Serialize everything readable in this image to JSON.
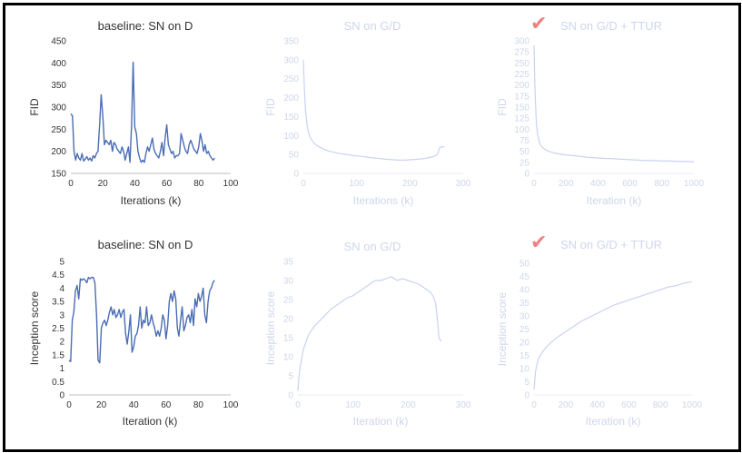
{
  "colors": {
    "bold_line": "#4a6db4",
    "faded_line": "#c9d3f1",
    "bold_text": "#333333",
    "faded_text": "#cfd6ea",
    "bold_axis": "#bfbfbf",
    "faded_axis": "#e8ebf4",
    "check": "#f08080",
    "border": "#000000"
  },
  "chart_data": [
    {
      "type": "line",
      "title": "baseline: SN on D",
      "xlabel": "Iterations (k)",
      "ylabel": "FID",
      "xlim": [
        0,
        100
      ],
      "ylim": [
        150,
        450
      ],
      "xticks": [
        "0",
        "20",
        "40",
        "60",
        "80",
        "100"
      ],
      "yticks": [
        "150",
        "200",
        "250",
        "300",
        "350",
        "400",
        "450"
      ],
      "style": "bold",
      "checked": false,
      "x": [
        0,
        1,
        2,
        3,
        4,
        5,
        6,
        7,
        8,
        9,
        10,
        11,
        12,
        13,
        14,
        15,
        16,
        17,
        18,
        19,
        20,
        21,
        22,
        23,
        24,
        25,
        26,
        27,
        28,
        29,
        30,
        31,
        32,
        33,
        34,
        35,
        36,
        37,
        38,
        39,
        40,
        41,
        42,
        43,
        44,
        45,
        46,
        47,
        48,
        49,
        50,
        51,
        52,
        53,
        54,
        55,
        56,
        57,
        58,
        59,
        60,
        61,
        62,
        63,
        64,
        65,
        66,
        67,
        68,
        69,
        70,
        71,
        72,
        73,
        74,
        75,
        76,
        77,
        78,
        79,
        80,
        81,
        82,
        83,
        84,
        85,
        86,
        87,
        88,
        89,
        90
      ],
      "y": [
        285,
        280,
        200,
        180,
        195,
        185,
        180,
        195,
        178,
        182,
        188,
        180,
        185,
        178,
        190,
        185,
        195,
        200,
        260,
        328,
        280,
        215,
        225,
        220,
        215,
        225,
        200,
        220,
        215,
        205,
        200,
        195,
        210,
        200,
        180,
        195,
        210,
        175,
        260,
        402,
        255,
        240,
        200,
        185,
        175,
        180,
        175,
        195,
        210,
        200,
        215,
        230,
        205,
        195,
        190,
        185,
        200,
        220,
        190,
        230,
        260,
        215,
        205,
        195,
        200,
        185,
        190,
        190,
        195,
        240,
        225,
        210,
        200,
        195,
        215,
        225,
        215,
        205,
        200,
        195,
        210,
        240,
        225,
        200,
        215,
        195,
        200,
        190,
        185,
        180,
        185
      ],
      "legend": "none",
      "grid": false
    },
    {
      "type": "line",
      "title": "SN on G/D",
      "xlabel": "Iterations (k)",
      "ylabel": "FID",
      "xlim": [
        0,
        300
      ],
      "ylim": [
        0,
        350
      ],
      "xticks": [
        "0",
        "100",
        "200",
        "300"
      ],
      "yticks": [
        "0",
        "50",
        "100",
        "150",
        "200",
        "250",
        "300",
        "350"
      ],
      "style": "faded",
      "checked": false,
      "x": [
        0,
        2,
        4,
        6,
        8,
        10,
        13,
        16,
        20,
        25,
        30,
        40,
        50,
        60,
        70,
        80,
        90,
        100,
        110,
        120,
        130,
        140,
        150,
        160,
        170,
        180,
        190,
        200,
        210,
        220,
        230,
        240,
        245,
        250,
        253,
        256,
        260,
        265
      ],
      "y": [
        300,
        220,
        170,
        140,
        120,
        105,
        95,
        88,
        80,
        74,
        70,
        63,
        58,
        55,
        52,
        50,
        48,
        46,
        45,
        43,
        41,
        40,
        38,
        37,
        36,
        35,
        35,
        36,
        37,
        38,
        40,
        43,
        45,
        48,
        55,
        68,
        70,
        70
      ],
      "legend": "none",
      "grid": false
    },
    {
      "type": "line",
      "title": "SN on G/D + TTUR",
      "xlabel": "Iteration (k)",
      "ylabel": "FID",
      "xlim": [
        0,
        1000
      ],
      "ylim": [
        0,
        300
      ],
      "xticks": [
        "0",
        "200",
        "400",
        "600",
        "800",
        "1000"
      ],
      "yticks": [
        "0",
        "25",
        "50",
        "75",
        "100",
        "125",
        "150",
        "175",
        "200",
        "225",
        "250",
        "275",
        "300"
      ],
      "style": "faded",
      "checked": true,
      "check_mark": "✔",
      "x": [
        0,
        5,
        10,
        15,
        20,
        30,
        40,
        50,
        60,
        80,
        100,
        130,
        160,
        200,
        250,
        300,
        350,
        400,
        450,
        500,
        550,
        600,
        650,
        700,
        750,
        800,
        850,
        900,
        950,
        1000
      ],
      "y": [
        290,
        200,
        150,
        115,
        95,
        75,
        65,
        60,
        56,
        52,
        49,
        46,
        44,
        42,
        40,
        38,
        36,
        35,
        34,
        33,
        32,
        31,
        30,
        29,
        29,
        28,
        28,
        27,
        27,
        26
      ],
      "legend": "none",
      "grid": false
    },
    {
      "type": "line",
      "title": "baseline: SN on D",
      "xlabel": "Iteration (k)",
      "ylabel": "Inception score",
      "xlim": [
        0,
        100
      ],
      "ylim": [
        0,
        5
      ],
      "xticks": [
        "0",
        "20",
        "40",
        "60",
        "80",
        "100"
      ],
      "yticks": [
        "0",
        "0.5",
        "1",
        "1.5",
        "2",
        "2.5",
        "3",
        "3.5",
        "4",
        "4.5",
        "5"
      ],
      "style": "bold",
      "checked": false,
      "x": [
        0,
        1,
        2,
        3,
        4,
        5,
        6,
        7,
        8,
        9,
        10,
        11,
        12,
        13,
        14,
        15,
        16,
        17,
        18,
        19,
        20,
        21,
        22,
        23,
        24,
        25,
        26,
        27,
        28,
        29,
        30,
        31,
        32,
        33,
        34,
        35,
        36,
        37,
        38,
        39,
        40,
        41,
        42,
        43,
        44,
        45,
        46,
        47,
        48,
        49,
        50,
        51,
        52,
        53,
        54,
        55,
        56,
        57,
        58,
        59,
        60,
        61,
        62,
        63,
        64,
        65,
        66,
        67,
        68,
        69,
        70,
        71,
        72,
        73,
        74,
        75,
        76,
        77,
        78,
        79,
        80,
        81,
        82,
        83,
        84,
        85,
        86,
        87,
        88,
        89,
        90
      ],
      "y": [
        1.3,
        1.25,
        2.8,
        3.1,
        3.9,
        4.1,
        3.6,
        4.35,
        4.3,
        4.35,
        4.3,
        4.2,
        4.4,
        4.35,
        4.4,
        4.4,
        4.2,
        3.0,
        1.3,
        1.2,
        2.5,
        2.7,
        2.8,
        2.6,
        2.8,
        3.1,
        3.3,
        3.0,
        3.2,
        2.9,
        3.0,
        3.2,
        2.9,
        3.1,
        3.2,
        2.3,
        1.9,
        2.4,
        3.0,
        1.6,
        1.8,
        2.2,
        2.3,
        2.6,
        3.3,
        2.5,
        2.8,
        2.7,
        3.3,
        2.6,
        2.7,
        3.0,
        2.7,
        2.5,
        2.2,
        2.4,
        2.2,
        2.5,
        3.0,
        2.8,
        2.1,
        2.6,
        3.5,
        3.8,
        3.5,
        3.9,
        3.6,
        2.5,
        2.2,
        2.8,
        3.3,
        2.4,
        2.6,
        2.9,
        3.0,
        2.7,
        3.2,
        2.6,
        3.6,
        3.3,
        3.8,
        3.5,
        3.7,
        4.0,
        3.0,
        2.7,
        3.5,
        3.9,
        4.0,
        4.2,
        4.3
      ],
      "legend": "none",
      "grid": false
    },
    {
      "type": "line",
      "title": "SN on G/D",
      "xlabel": "Iteration (k)",
      "ylabel": "Inception score",
      "xlim": [
        0,
        300
      ],
      "ylim": [
        0,
        35
      ],
      "xticks": [
        "0",
        "100",
        "200",
        "300"
      ],
      "yticks": [
        "0",
        "5",
        "10",
        "15",
        "20",
        "25",
        "30",
        "35"
      ],
      "style": "faded",
      "checked": false,
      "x": [
        0,
        2,
        5,
        10,
        15,
        20,
        30,
        40,
        50,
        60,
        70,
        80,
        90,
        100,
        110,
        120,
        130,
        140,
        150,
        160,
        170,
        180,
        190,
        200,
        210,
        220,
        230,
        240,
        245,
        250,
        253,
        256,
        260
      ],
      "y": [
        1,
        5,
        8,
        12,
        14,
        16,
        18,
        19.5,
        21,
        22.5,
        23.5,
        24.5,
        25.5,
        26,
        27,
        28,
        29,
        30,
        30,
        30.5,
        31,
        30,
        30.5,
        30,
        29.5,
        29,
        28,
        27,
        26,
        24,
        20,
        15,
        14
      ],
      "legend": "none",
      "grid": false
    },
    {
      "type": "line",
      "title": "SN on G/D + TTUR",
      "xlabel": "Iteration (k)",
      "ylabel": "Inception score",
      "xlim": [
        0,
        1000
      ],
      "ylim": [
        0,
        50
      ],
      "xticks": [
        "0",
        "200",
        "400",
        "600",
        "800",
        "1000"
      ],
      "yticks": [
        "0",
        "5",
        "10",
        "15",
        "20",
        "25",
        "30",
        "35",
        "40",
        "45",
        "50"
      ],
      "style": "faded",
      "checked": true,
      "check_mark": "✔",
      "x": [
        0,
        5,
        10,
        20,
        30,
        50,
        75,
        100,
        150,
        200,
        250,
        300,
        350,
        400,
        450,
        500,
        550,
        600,
        650,
        700,
        750,
        800,
        850,
        900,
        950,
        1000
      ],
      "y": [
        2,
        6,
        9,
        12,
        14,
        16,
        18,
        19.5,
        22,
        24,
        26,
        28,
        29.5,
        31,
        32.5,
        34,
        35,
        36,
        37,
        38,
        39,
        40,
        41,
        41.5,
        42.5,
        43
      ],
      "legend": "none",
      "grid": false
    }
  ]
}
